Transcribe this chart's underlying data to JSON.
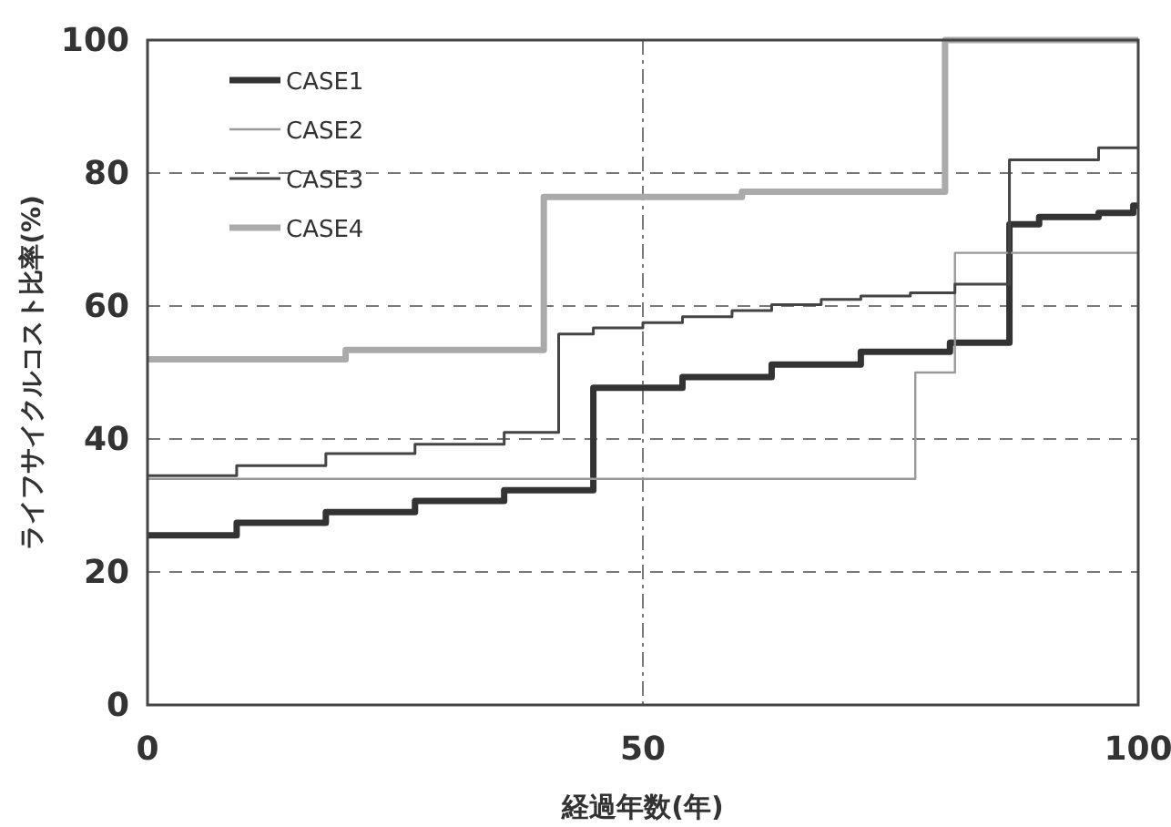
{
  "chart_data": {
    "type": "step",
    "xlabel": "経過年数(年)",
    "ylabel": "ライフサイクルコスト比率(%)",
    "xlim": [
      0,
      100
    ],
    "ylim": [
      0,
      100
    ],
    "xticks": [
      0,
      50,
      100
    ],
    "yticks": [
      0,
      20,
      40,
      60,
      80,
      100
    ],
    "grid": true,
    "legend": "top left",
    "series": [
      {
        "name": "CASE1",
        "color": "#333333",
        "x": [
          0,
          9,
          18,
          27,
          36,
          45,
          54,
          63,
          72,
          81,
          87,
          90,
          96,
          99.5,
          100
        ],
        "values": [
          25.5,
          27.4,
          29,
          30.7,
          32.3,
          47.7,
          49.3,
          51.2,
          53.1,
          54.5,
          72.3,
          73.4,
          74,
          75.1,
          75.1
        ]
      },
      {
        "name": "CASE2",
        "color": "#999999",
        "x": [
          0,
          77.5,
          81.5,
          100
        ],
        "values": [
          34,
          50,
          68,
          68
        ]
      },
      {
        "name": "CASE3",
        "color": "#444444",
        "x": [
          0,
          9,
          18,
          27,
          36,
          41.5,
          45,
          50,
          54,
          59,
          63,
          68,
          72,
          77,
          81.5,
          87,
          96,
          100
        ],
        "values": [
          34.5,
          36,
          37.8,
          39.2,
          41,
          55.8,
          56.7,
          57.5,
          58.4,
          59.3,
          60.2,
          61,
          61.5,
          62,
          63.3,
          82,
          83.8,
          83.8
        ]
      },
      {
        "name": "CASE4",
        "color": "#aaaaaa",
        "x": [
          0,
          20,
          40,
          60,
          80.5,
          100
        ],
        "values": [
          52,
          53.4,
          76.4,
          77.2,
          100,
          100
        ]
      }
    ]
  }
}
